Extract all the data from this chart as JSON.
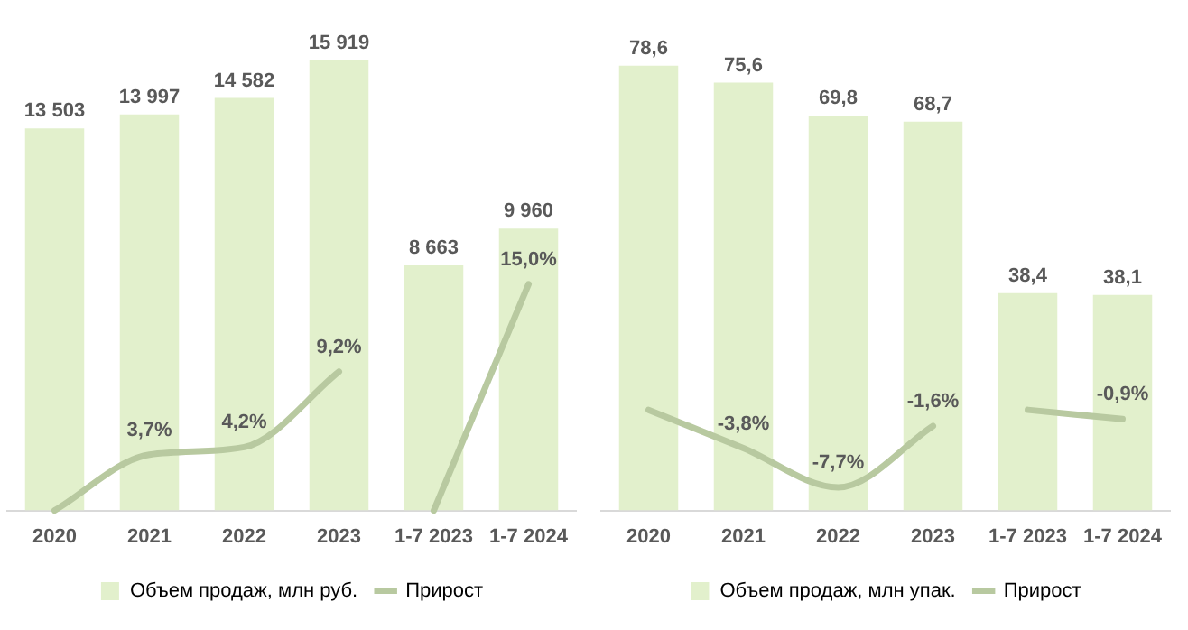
{
  "chart_data": [
    {
      "type": "bar",
      "categories": [
        "2020",
        "2021",
        "2022",
        "2023",
        "1-7 2023",
        "1-7 2024"
      ],
      "tick_labels": "x",
      "grid": false,
      "legend": "bottom",
      "line_style": "solid",
      "marker": "none",
      "series": [
        {
          "name": "Объем продаж, млн руб.",
          "color": "#e2f0cc",
          "values": [
            13503,
            13997,
            14582,
            15919,
            8663,
            9960
          ],
          "value_labels": [
            "13 503",
            "13 997",
            "14 582",
            "15 919",
            "8 663",
            "9 960"
          ]
        },
        {
          "type": "line",
          "name": "Прирост",
          "axis": "y2",
          "color": "#b8c9a0",
          "values": [
            0,
            3.7,
            4.2,
            9.2,
            null,
            null
          ],
          "value_labels": [
            null,
            "3,7%",
            "4,2%",
            "9,2%",
            null,
            null
          ]
        },
        {
          "type": "line",
          "axis": "y2",
          "color": "#b8c9a0",
          "values": [
            null,
            null,
            null,
            null,
            0,
            15.0
          ],
          "value_labels": [
            null,
            null,
            null,
            null,
            null,
            "15,0%"
          ]
        }
      ]
    },
    {
      "type": "bar",
      "categories": [
        "2020",
        "2021",
        "2022",
        "2023",
        "1-7 2023",
        "1-7 2024"
      ],
      "tick_labels": "x",
      "grid": false,
      "legend": "bottom",
      "line_style": "solid",
      "marker": "none",
      "series": [
        {
          "name": "Объем продаж, млн упак.",
          "color": "#e2f0cc",
          "values": [
            78.6,
            75.6,
            69.8,
            68.7,
            38.4,
            38.1
          ],
          "value_labels": [
            "78,6",
            "75,6",
            "69,8",
            "68,7",
            "38,4",
            "38,1"
          ]
        },
        {
          "type": "line",
          "name": "Прирост",
          "axis": "y2",
          "color": "#b8c9a0",
          "values": [
            0,
            -3.8,
            -7.7,
            -1.6,
            null,
            null
          ],
          "value_labels": [
            null,
            "-3,8%",
            "-7,7%",
            "-1,6%",
            null,
            null
          ]
        },
        {
          "type": "line",
          "axis": "y2",
          "color": "#b8c9a0",
          "values": [
            null,
            null,
            null,
            null,
            0,
            -0.9
          ],
          "value_labels": [
            null,
            null,
            null,
            null,
            null,
            "-0,9%"
          ]
        }
      ]
    }
  ]
}
